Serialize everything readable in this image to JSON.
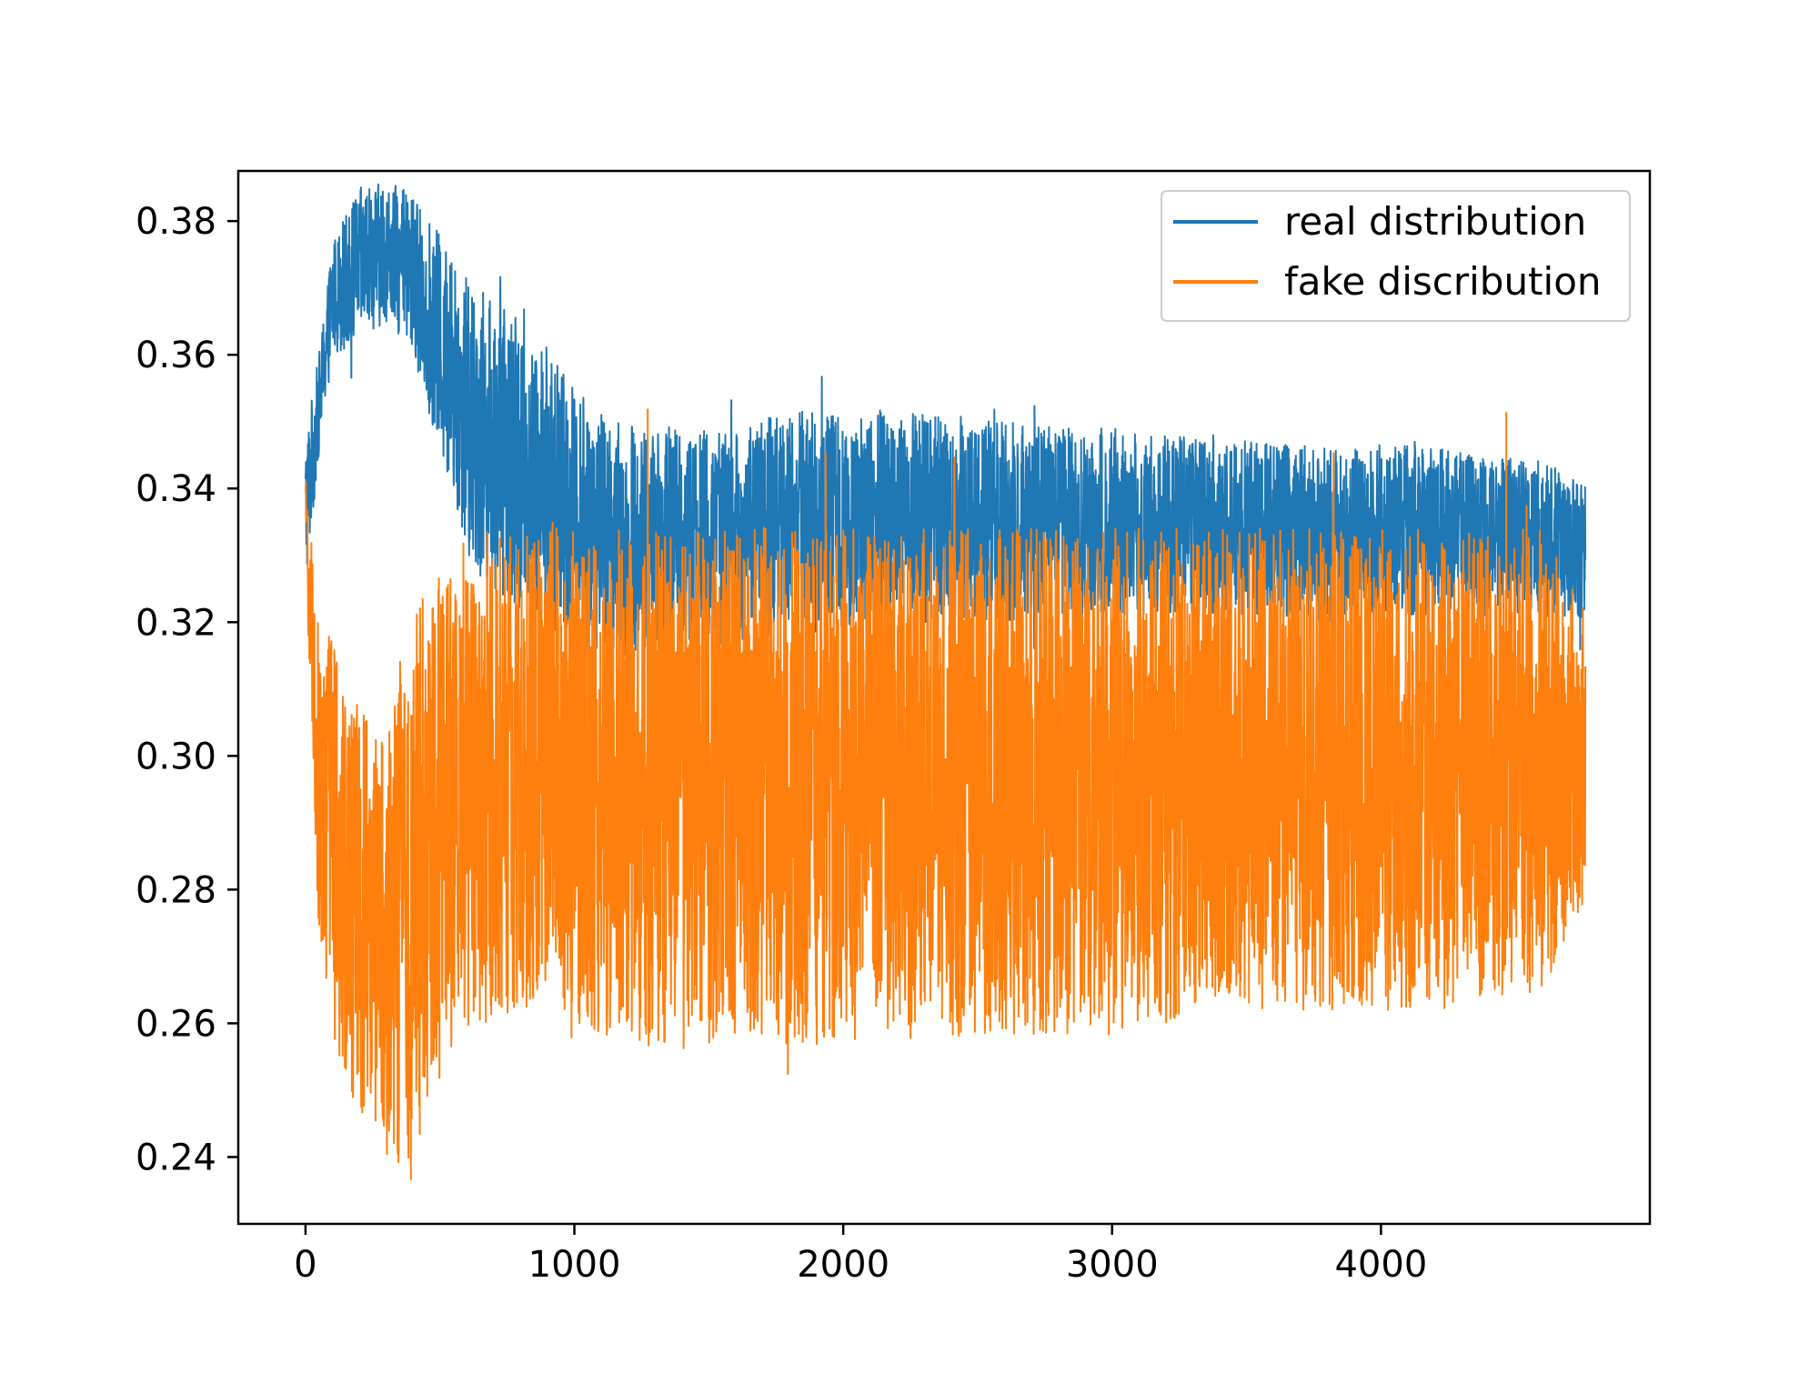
{
  "chart_data": {
    "type": "line",
    "title": "",
    "xlabel": "",
    "ylabel": "",
    "xlim": [
      -250,
      5000
    ],
    "ylim": [
      0.23,
      0.3875
    ],
    "grid": false,
    "legend_position": "top-right",
    "x_ticks": [
      0,
      1000,
      2000,
      3000,
      4000
    ],
    "x_tick_labels": [
      "0",
      "1000",
      "2000",
      "3000",
      "4000"
    ],
    "y_ticks": [
      0.24,
      0.26,
      0.28,
      0.3,
      0.32,
      0.34,
      0.36,
      0.38
    ],
    "y_tick_labels": [
      "0.24",
      "0.26",
      "0.28",
      "0.30",
      "0.32",
      "0.34",
      "0.36",
      "0.38"
    ],
    "n_points": 4750,
    "series": [
      {
        "name": "real distribution",
        "color": "#1f77b4",
        "envelope_x": [
          0,
          50,
          100,
          200,
          300,
          400,
          500,
          550,
          600,
          700,
          800,
          900,
          1000,
          1100,
          1200,
          1400,
          1600,
          1700,
          1800,
          2000,
          2200,
          2400,
          2600,
          2800,
          3000,
          3200,
          3400,
          3600,
          3800,
          4000,
          4200,
          4400,
          4600,
          4760
        ],
        "envelope_upper": [
          0.348,
          0.36,
          0.377,
          0.385,
          0.386,
          0.384,
          0.378,
          0.375,
          0.372,
          0.368,
          0.365,
          0.362,
          0.355,
          0.352,
          0.35,
          0.349,
          0.348,
          0.351,
          0.352,
          0.351,
          0.352,
          0.351,
          0.35,
          0.349,
          0.349,
          0.348,
          0.348,
          0.347,
          0.346,
          0.347,
          0.346,
          0.345,
          0.344,
          0.341
        ],
        "envelope_lower": [
          0.325,
          0.345,
          0.36,
          0.362,
          0.365,
          0.36,
          0.345,
          0.338,
          0.33,
          0.325,
          0.322,
          0.318,
          0.316,
          0.316,
          0.315,
          0.316,
          0.317,
          0.318,
          0.318,
          0.319,
          0.32,
          0.32,
          0.32,
          0.321,
          0.321,
          0.321,
          0.321,
          0.321,
          0.32,
          0.321,
          0.321,
          0.321,
          0.321,
          0.32
        ]
      },
      {
        "name": "fake discribution",
        "color": "#ff7f0e",
        "envelope_x": [
          0,
          50,
          100,
          200,
          300,
          400,
          500,
          550,
          600,
          700,
          800,
          900,
          1000,
          1100,
          1200,
          1400,
          1600,
          1700,
          1800,
          2000,
          2200,
          2400,
          2600,
          2800,
          3000,
          3200,
          3400,
          3600,
          3800,
          4000,
          4200,
          4400,
          4600,
          4760
        ],
        "envelope_upper": [
          0.342,
          0.318,
          0.318,
          0.308,
          0.302,
          0.32,
          0.33,
          0.332,
          0.333,
          0.334,
          0.334,
          0.335,
          0.335,
          0.334,
          0.334,
          0.334,
          0.335,
          0.335,
          0.334,
          0.334,
          0.334,
          0.334,
          0.334,
          0.334,
          0.334,
          0.334,
          0.334,
          0.334,
          0.334,
          0.334,
          0.334,
          0.334,
          0.334,
          0.322
        ],
        "envelope_lower": [
          0.33,
          0.272,
          0.258,
          0.245,
          0.238,
          0.24,
          0.252,
          0.255,
          0.258,
          0.26,
          0.262,
          0.262,
          0.26,
          0.258,
          0.256,
          0.256,
          0.258,
          0.258,
          0.256,
          0.256,
          0.257,
          0.258,
          0.258,
          0.258,
          0.258,
          0.26,
          0.262,
          0.262,
          0.262,
          0.262,
          0.262,
          0.263,
          0.265,
          0.276
        ]
      }
    ],
    "legend": {
      "entries": [
        "real distribution",
        "fake discribution"
      ]
    }
  }
}
